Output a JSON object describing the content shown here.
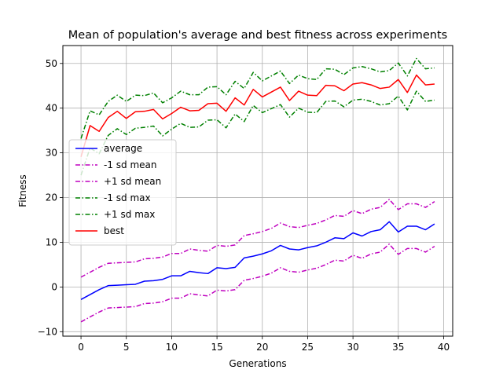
{
  "chart_data": {
    "type": "line",
    "title": "Mean of population's average and best fitness across experiments",
    "xlabel": "Generations",
    "ylabel": "Fitness",
    "xlim": [
      -2,
      41
    ],
    "ylim": [
      -11,
      54
    ],
    "xticks": [
      0,
      5,
      10,
      15,
      20,
      25,
      30,
      35,
      40
    ],
    "yticks": [
      -10,
      0,
      10,
      20,
      30,
      40,
      50
    ],
    "grid": true,
    "legend_position": "center-left",
    "x": [
      0,
      1,
      2,
      3,
      4,
      5,
      6,
      7,
      8,
      9,
      10,
      11,
      12,
      13,
      14,
      15,
      16,
      17,
      18,
      19,
      20,
      21,
      22,
      23,
      24,
      25,
      26,
      27,
      28,
      29,
      30,
      31,
      32,
      33,
      34,
      35,
      36,
      37,
      38,
      39
    ],
    "series": [
      {
        "name": "average",
        "color": "#0000ff",
        "dash": "solid",
        "values": [
          -2.8,
          -1.7,
          -0.6,
          0.3,
          0.4,
          0.5,
          0.6,
          1.3,
          1.4,
          1.7,
          2.5,
          2.5,
          3.5,
          3.2,
          3.0,
          4.3,
          4.1,
          4.4,
          6.5,
          6.9,
          7.4,
          8.1,
          9.3,
          8.5,
          8.3,
          8.8,
          9.2,
          10.0,
          11.0,
          10.8,
          12.1,
          11.4,
          12.4,
          12.8,
          14.6,
          12.3,
          13.6,
          13.6,
          12.8,
          14.1
        ]
      },
      {
        "name": "-1 sd mean",
        "color": "#bf00bf",
        "dash": "dashdot",
        "values": [
          -7.8,
          -6.7,
          -5.6,
          -4.7,
          -4.6,
          -4.5,
          -4.4,
          -3.7,
          -3.6,
          -3.3,
          -2.5,
          -2.5,
          -1.5,
          -1.8,
          -2.0,
          -0.7,
          -0.9,
          -0.6,
          1.5,
          1.9,
          2.4,
          3.1,
          4.3,
          3.5,
          3.3,
          3.8,
          4.2,
          5.0,
          6.0,
          5.8,
          7.1,
          6.4,
          7.4,
          7.8,
          9.6,
          7.3,
          8.6,
          8.6,
          7.8,
          9.1
        ]
      },
      {
        "name": "+1 sd mean",
        "color": "#bf00bf",
        "dash": "dashdot",
        "values": [
          2.2,
          3.3,
          4.4,
          5.3,
          5.4,
          5.5,
          5.6,
          6.3,
          6.4,
          6.7,
          7.5,
          7.5,
          8.5,
          8.2,
          8.0,
          9.3,
          9.1,
          9.4,
          11.5,
          11.9,
          12.4,
          13.1,
          14.3,
          13.5,
          13.3,
          13.8,
          14.2,
          15.0,
          16.0,
          15.8,
          17.1,
          16.4,
          17.4,
          17.8,
          19.6,
          17.3,
          18.6,
          18.6,
          17.8,
          19.1
        ]
      },
      {
        "name": "-1 sd max",
        "color": "#008000",
        "dash": "dashdot",
        "values": [
          25.0,
          31.1,
          29.8,
          33.9,
          35.4,
          34.1,
          35.5,
          35.7,
          36.0,
          33.8,
          35.3,
          36.6,
          35.7,
          35.8,
          37.3,
          37.4,
          35.6,
          38.7,
          37.0,
          40.6,
          39.0,
          39.9,
          40.8,
          38.0,
          40.0,
          39.1,
          39.0,
          41.5,
          41.6,
          40.3,
          41.8,
          42.0,
          41.5,
          40.7,
          41.0,
          42.7,
          39.6,
          43.8,
          41.5,
          41.8
        ]
      },
      {
        "name": "+1 sd max",
        "color": "#008000",
        "dash": "dashdot",
        "values": [
          33.2,
          39.4,
          38.5,
          41.5,
          42.9,
          41.5,
          42.9,
          42.8,
          43.4,
          41.2,
          42.3,
          43.8,
          43.0,
          43.0,
          44.7,
          44.8,
          43.0,
          46.0,
          44.4,
          48.0,
          46.1,
          47.2,
          48.3,
          45.5,
          47.4,
          46.6,
          46.4,
          48.8,
          48.7,
          47.5,
          49.0,
          49.3,
          48.8,
          48.1,
          48.4,
          50.1,
          47.2,
          51.1,
          48.8,
          49.0
        ]
      },
      {
        "name": "best",
        "color": "#ff0000",
        "dash": "solid",
        "values": [
          29.1,
          36.1,
          34.8,
          37.9,
          39.3,
          37.7,
          39.2,
          39.3,
          39.7,
          37.6,
          38.8,
          40.2,
          39.4,
          39.5,
          41.0,
          41.1,
          39.3,
          42.3,
          40.7,
          44.2,
          42.5,
          43.6,
          44.7,
          41.7,
          43.8,
          42.9,
          42.8,
          45.1,
          45.0,
          43.9,
          45.4,
          45.7,
          45.2,
          44.4,
          44.7,
          46.4,
          43.5,
          47.4,
          45.2,
          45.4
        ]
      }
    ]
  }
}
